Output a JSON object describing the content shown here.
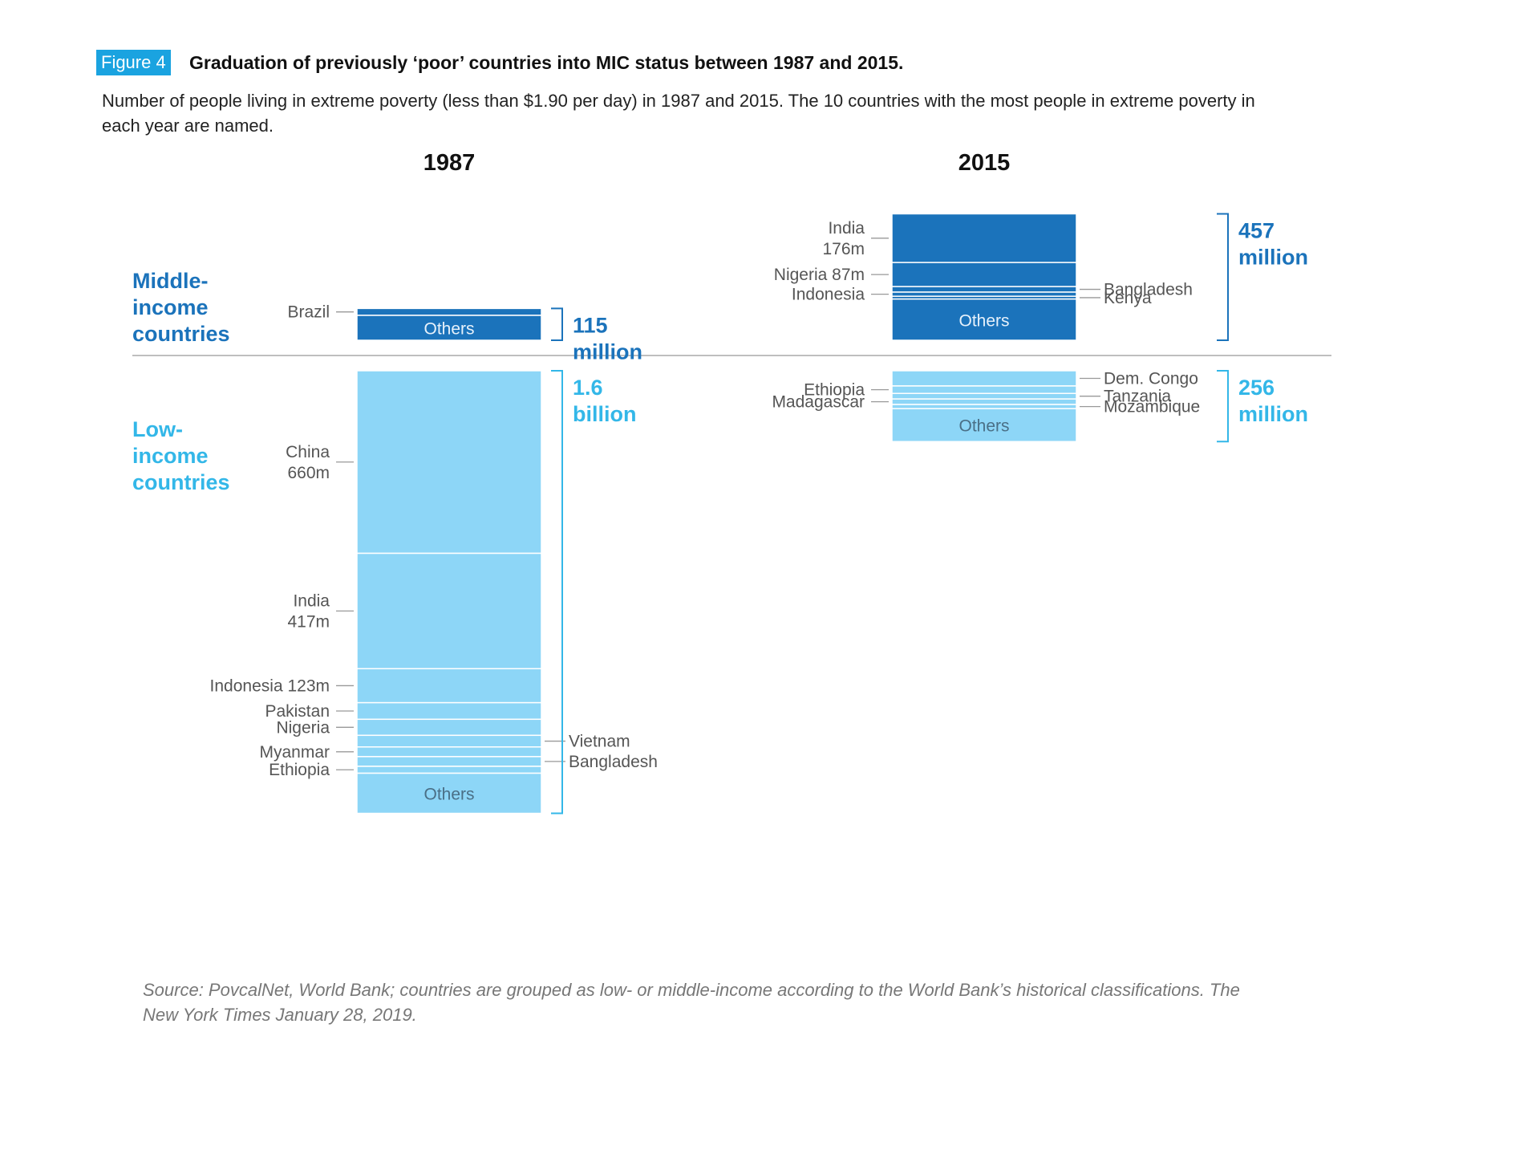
{
  "figure": {
    "badge": "Figure 4",
    "title": "Graduation of previously ‘poor’ countries into MIC status between 1987 and 2015.",
    "subtitle": "Number of people living in extreme poverty (less than $1.90 per day) in 1987 and 2015. The 10 countries with the most people in extreme poverty in each year are named.",
    "source": "Source: PovcalNet, World Bank; countries are grouped as low- or middle-income according to the World Bank’s historical classifications. The New York Times January 28, 2019."
  },
  "colors": {
    "badge": "#1aa3e0",
    "middle_income": "#1b73bb",
    "low_income": "#8dd6f7",
    "middle_income_text": "#1b73bb",
    "low_income_text": "#33b7e8",
    "label_text": "#555555",
    "leader_line": "#999999",
    "divider": "#aaaaaa"
  },
  "chart_data": {
    "type": "stacked-bar",
    "unit": "million people",
    "groups": [
      {
        "name": "Middle-income countries",
        "label_lines": [
          "Middle-",
          "income",
          "countries"
        ]
      },
      {
        "name": "Low-income countries",
        "label_lines": [
          "Low-",
          "income",
          "countries"
        ]
      }
    ],
    "columns": [
      {
        "year": "1987",
        "middle_income": {
          "total_label": [
            "115",
            "million"
          ],
          "segments": [
            {
              "name": "Brazil",
              "value": 25,
              "label": "Brazil",
              "side": "left"
            },
            {
              "name": "Others",
              "value": 90,
              "label": "Others",
              "side": "inside"
            }
          ]
        },
        "low_income": {
          "total_label": [
            "1.6",
            "billion"
          ],
          "segments": [
            {
              "name": "China",
              "value": 660,
              "label": "China\n660m",
              "side": "left"
            },
            {
              "name": "India",
              "value": 417,
              "label": "India\n417m",
              "side": "left"
            },
            {
              "name": "Indonesia",
              "value": 123,
              "label": "Indonesia 123m",
              "side": "left"
            },
            {
              "name": "Pakistan",
              "value": 60,
              "label": "Pakistan",
              "side": "left"
            },
            {
              "name": "Nigeria",
              "value": 58,
              "label": "Nigeria",
              "side": "left"
            },
            {
              "name": "Vietnam",
              "value": 42,
              "label": "Vietnam",
              "side": "right"
            },
            {
              "name": "Myanmar",
              "value": 35,
              "label": "Myanmar",
              "side": "left"
            },
            {
              "name": "Bangladesh",
              "value": 35,
              "label": "Bangladesh",
              "side": "right"
            },
            {
              "name": "Ethiopia",
              "value": 25,
              "label": "Ethiopia",
              "side": "left"
            },
            {
              "name": "Others",
              "value": 145,
              "label": "Others",
              "side": "inside"
            }
          ]
        }
      },
      {
        "year": "2015",
        "middle_income": {
          "total_label": [
            "457",
            "million"
          ],
          "segments": [
            {
              "name": "India",
              "value": 176,
              "label": "India\n176m",
              "side": "left"
            },
            {
              "name": "Nigeria",
              "value": 87,
              "label": "Nigeria 87m",
              "side": "left"
            },
            {
              "name": "Bangladesh",
              "value": 20,
              "label": "Bangladesh",
              "side": "right"
            },
            {
              "name": "Indonesia",
              "value": 15,
              "label": "Indonesia",
              "side": "left"
            },
            {
              "name": "Kenya",
              "value": 10,
              "label": "Kenya",
              "side": "right"
            },
            {
              "name": "Others",
              "value": 149,
              "label": "Others",
              "side": "inside"
            }
          ]
        },
        "low_income": {
          "total_label": [
            "256",
            "million"
          ],
          "segments": [
            {
              "name": "Dem. Congo",
              "value": 55,
              "label": "Dem. Congo",
              "side": "right"
            },
            {
              "name": "Ethiopia",
              "value": 27,
              "label": "Ethiopia",
              "side": "left"
            },
            {
              "name": "Tanzania",
              "value": 20,
              "label": "Tanzania",
              "side": "right"
            },
            {
              "name": "Madagascar",
              "value": 20,
              "label": "Madagascar",
              "side": "left"
            },
            {
              "name": "Mozambique",
              "value": 15,
              "label": "Mozambique",
              "side": "right"
            },
            {
              "name": "Others",
              "value": 119,
              "label": "Others",
              "side": "inside"
            }
          ]
        }
      }
    ]
  }
}
